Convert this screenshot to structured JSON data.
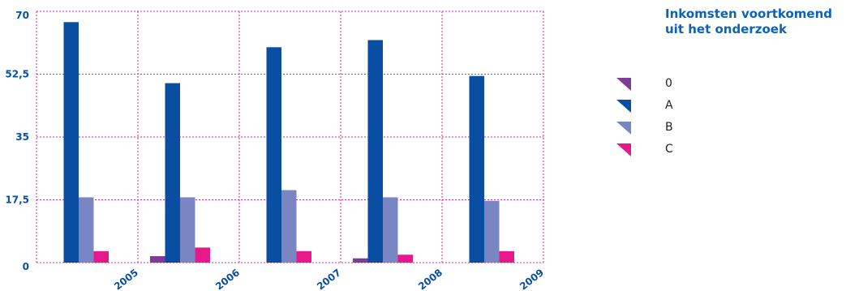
{
  "chart_data": {
    "type": "bar",
    "categories": [
      "2005",
      "2006",
      "2007",
      "2008",
      "2009"
    ],
    "series": [
      {
        "name": "0",
        "color": "#7b3d97",
        "values": [
          0,
          1.8,
          0,
          1.2,
          0
        ]
      },
      {
        "name": "A",
        "color": "#0a4ea2",
        "values": [
          67,
          50,
          60,
          62,
          52
        ]
      },
      {
        "name": "B",
        "color": "#7a86c4",
        "values": [
          18.2,
          18.2,
          20.2,
          18.2,
          17.2
        ]
      },
      {
        "name": "C",
        "color": "#e5198a",
        "values": [
          3.2,
          4.2,
          3.2,
          2.2,
          3.2
        ]
      }
    ],
    "yticks": [
      "0",
      "17,5",
      "35",
      "52,5",
      "70"
    ],
    "ylim": [
      0,
      70
    ],
    "grid": true,
    "legend_position": "right",
    "title": "Inkomsten voortkomend uit het onderzoek"
  }
}
